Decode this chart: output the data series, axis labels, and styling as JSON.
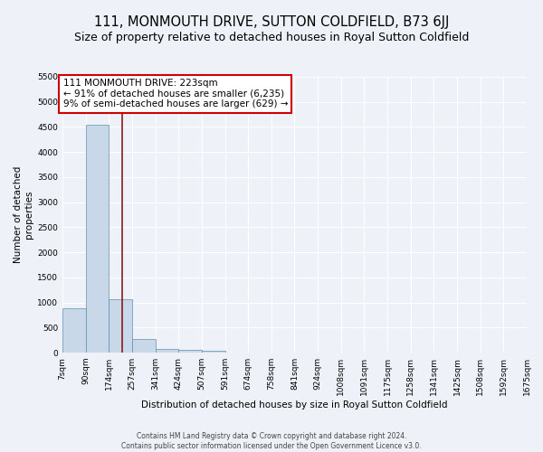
{
  "title": "111, MONMOUTH DRIVE, SUTTON COLDFIELD, B73 6JJ",
  "subtitle": "Size of property relative to detached houses in Royal Sutton Coldfield",
  "xlabel": "Distribution of detached houses by size in Royal Sutton Coldfield",
  "ylabel": "Number of detached\nproperties",
  "footer": "Contains HM Land Registry data © Crown copyright and database right 2024.\nContains public sector information licensed under the Open Government Licence v3.0.",
  "bin_edges": [
    7,
    90,
    174,
    257,
    341,
    424,
    507,
    591,
    674,
    758,
    841,
    924,
    1008,
    1091,
    1175,
    1258,
    1341,
    1425,
    1508,
    1592,
    1675
  ],
  "bar_heights": [
    880,
    4550,
    1060,
    275,
    75,
    55,
    40,
    0,
    0,
    0,
    0,
    0,
    0,
    0,
    0,
    0,
    0,
    0,
    0,
    0
  ],
  "bar_color": "#c8d8e8",
  "bar_edge_color": "#6090b0",
  "property_size": 223,
  "vline_color": "#8b1a1a",
  "annotation_line1": "111 MONMOUTH DRIVE: 223sqm",
  "annotation_line2": "← 91% of detached houses are smaller (6,235)",
  "annotation_line3": "9% of semi-detached houses are larger (629) →",
  "annotation_box_color": "#ffffff",
  "annotation_box_edge": "#cc0000",
  "ylim": [
    0,
    5500
  ],
  "yticks": [
    0,
    500,
    1000,
    1500,
    2000,
    2500,
    3000,
    3500,
    4000,
    4500,
    5000,
    5500
  ],
  "tick_labels": [
    "7sqm",
    "90sqm",
    "174sqm",
    "257sqm",
    "341sqm",
    "424sqm",
    "507sqm",
    "591sqm",
    "674sqm",
    "758sqm",
    "841sqm",
    "924sqm",
    "1008sqm",
    "1091sqm",
    "1175sqm",
    "1258sqm",
    "1341sqm",
    "1425sqm",
    "1508sqm",
    "1592sqm",
    "1675sqm"
  ],
  "background_color": "#eef2f8",
  "plot_bg_color": "#eef2f8",
  "grid_color": "#ffffff",
  "title_fontsize": 10.5,
  "subtitle_fontsize": 9,
  "axis_label_fontsize": 7.5,
  "tick_fontsize": 6.5,
  "annotation_fontsize": 7.5
}
